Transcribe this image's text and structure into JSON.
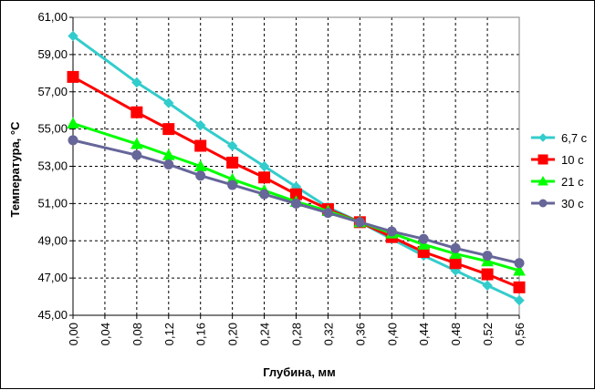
{
  "chart_data": {
    "type": "line",
    "title": "",
    "xlabel": "Глубина, мм",
    "ylabel": "Температура, °С",
    "xlim": [
      0,
      0.56
    ],
    "ylim": [
      45,
      61
    ],
    "x_ticks": [
      "0,00",
      "0,04",
      "0,08",
      "0,12",
      "0,16",
      "0,20",
      "0,24",
      "0,28",
      "0,32",
      "0,36",
      "0,40",
      "0,44",
      "0,48",
      "0,52",
      "0,56"
    ],
    "y_ticks": [
      "45,00",
      "47,00",
      "49,00",
      "51,00",
      "53,00",
      "55,00",
      "57,00",
      "59,00",
      "61,00"
    ],
    "grid": true,
    "legend_position": "right",
    "x": [
      0.0,
      0.08,
      0.12,
      0.16,
      0.2,
      0.24,
      0.28,
      0.32,
      0.36,
      0.4,
      0.44,
      0.48,
      0.52,
      0.56
    ],
    "series": [
      {
        "name": "6,7 с",
        "color": "#33cccc",
        "marker": "diamond",
        "values": [
          60.0,
          57.5,
          56.4,
          55.2,
          54.1,
          53.0,
          51.9,
          50.8,
          50.0,
          49.1,
          48.2,
          47.4,
          46.6,
          45.8
        ]
      },
      {
        "name": "10 с",
        "color": "#ff0000",
        "marker": "square",
        "values": [
          57.8,
          55.9,
          55.0,
          54.1,
          53.2,
          52.4,
          51.5,
          50.7,
          50.0,
          49.2,
          48.4,
          47.8,
          47.2,
          46.5
        ]
      },
      {
        "name": "21 с",
        "color": "#00ff00",
        "marker": "triangle",
        "values": [
          55.3,
          54.2,
          53.6,
          53.0,
          52.3,
          51.7,
          51.1,
          50.6,
          50.0,
          49.4,
          48.8,
          48.3,
          47.9,
          47.4
        ]
      },
      {
        "name": "30 с",
        "color": "#666699",
        "marker": "circle",
        "values": [
          54.4,
          53.6,
          53.1,
          52.5,
          52.0,
          51.5,
          51.0,
          50.5,
          50.0,
          49.5,
          49.1,
          48.6,
          48.2,
          47.8
        ]
      }
    ]
  }
}
